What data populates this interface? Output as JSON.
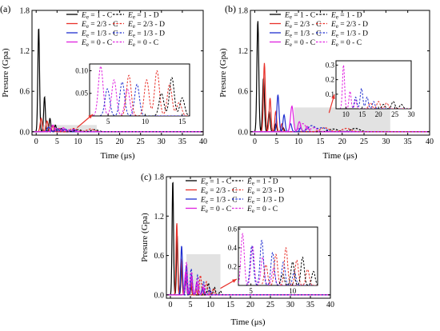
{
  "chart_data": [
    {
      "type": "line",
      "panel_label": "(a)",
      "xlabel": "Time (μs)",
      "ylabel": "Presure (Gpa)",
      "xlim": [
        -1,
        40
      ],
      "ylim": [
        -0.05,
        1.8
      ],
      "xticks": [
        "0",
        "5",
        "10",
        "15",
        "20",
        "25",
        "30",
        "35",
        "40"
      ],
      "yticks": [
        "0.0",
        "0.6",
        "1.2",
        "1.8"
      ],
      "legend": [
        {
          "sub": "e",
          "text": " = 1 - C",
          "color": "#000000",
          "dash": false
        },
        {
          "sub": "e",
          "text": " = 1 - D",
          "color": "#000000",
          "dash": true
        },
        {
          "sub": "e",
          "text": " = 2/3 - C",
          "color": "#e8312a",
          "dash": false
        },
        {
          "sub": "e",
          "text": " = 2/3 - D",
          "color": "#e8312a",
          "dash": true
        },
        {
          "sub": "e",
          "text": " = 1/3 - C",
          "color": "#1f2fd0",
          "dash": false
        },
        {
          "sub": "e",
          "text": " = 1/3 - D",
          "color": "#1f2fd0",
          "dash": true
        },
        {
          "sub": "e",
          "text": " = 0 - C",
          "color": "#e020e0",
          "dash": false
        },
        {
          "sub": "e",
          "text": " = 0 - C",
          "color": "#e020e0",
          "dash": true
        }
      ],
      "series": [
        {
          "color": "#000000",
          "dash": false,
          "peaks": [
            [
              0.6,
              1.55
            ],
            [
              2.0,
              0.52
            ],
            [
              3.3,
              0.2
            ],
            [
              4.6,
              0.1
            ],
            [
              6.0,
              0.05
            ]
          ],
          "w": 0.28
        },
        {
          "color": "#e8312a",
          "dash": false,
          "peaks": [
            [
              1.2,
              0.2
            ],
            [
              2.6,
              0.16
            ],
            [
              4.0,
              0.09
            ],
            [
              5.5,
              0.05
            ]
          ],
          "w": 0.35
        },
        {
          "color": "#1f2fd0",
          "dash": false,
          "peaks": [
            [
              3.0,
              0.07
            ],
            [
              5.0,
              0.05
            ],
            [
              7.0,
              0.04
            ]
          ],
          "w": 0.5
        },
        {
          "color": "#e020e0",
          "dash": false,
          "peaks": [
            [
              4.0,
              0.1
            ],
            [
              6.5,
              0.06
            ],
            [
              9.0,
              0.04
            ]
          ],
          "w": 0.5
        },
        {
          "color": "#000000",
          "dash": true,
          "peaks": [
            [
              10.0,
              0.03
            ],
            [
              14.0,
              0.03
            ]
          ],
          "w": 1.2
        },
        {
          "color": "#e8312a",
          "dash": true,
          "peaks": [
            [
              9.0,
              0.05
            ],
            [
              13.0,
              0.04
            ]
          ],
          "w": 1.2
        },
        {
          "color": "#1f2fd0",
          "dash": true,
          "peaks": [
            [
              6.0,
              0.04
            ],
            [
              9.0,
              0.03
            ]
          ],
          "w": 1.0
        },
        {
          "color": "#e020e0",
          "dash": true,
          "peaks": [
            [
              5.0,
              0.05
            ],
            [
              8.0,
              0.03
            ]
          ],
          "w": 1.0
        }
      ],
      "highlight_x": [
        1.8,
        14.5
      ],
      "highlight_y": 0.1,
      "inset": {
        "xlim": [
          2.5,
          16
        ],
        "ylim": [
          0,
          0.115
        ],
        "xticks": [
          "5",
          "10",
          "15"
        ],
        "yticks": [
          "0.05",
          "0.10"
        ],
        "series": [
          {
            "color": "#e020e0",
            "dash": true,
            "peaks": [
              [
                4.0,
                0.11
              ],
              [
                5.8,
                0.08
              ],
              [
                7.6,
                0.06
              ]
            ],
            "w": 0.45
          },
          {
            "color": "#1f2fd0",
            "dash": true,
            "peaks": [
              [
                4.9,
                0.06
              ],
              [
                6.9,
                0.075
              ],
              [
                8.9,
                0.07
              ]
            ],
            "w": 0.45
          },
          {
            "color": "#e8312a",
            "dash": true,
            "peaks": [
              [
                7.8,
                0.09
              ],
              [
                10.2,
                0.08
              ],
              [
                11.6,
                0.1
              ],
              [
                13.3,
                0.07
              ],
              [
                14.6,
                0.03
              ]
            ],
            "w": 0.45
          },
          {
            "color": "#000000",
            "dash": true,
            "peaks": [
              [
                12.2,
                0.05
              ],
              [
                13.6,
                0.085
              ],
              [
                15.0,
                0.04
              ]
            ],
            "w": 0.45
          }
        ]
      }
    },
    {
      "type": "line",
      "panel_label": "(b)",
      "xlabel": "Time (μs)",
      "ylabel": "Presure (Gpa)",
      "xlim": [
        -1,
        40
      ],
      "ylim": [
        -0.05,
        1.8
      ],
      "xticks": [
        "0",
        "5",
        "10",
        "15",
        "20",
        "25",
        "30",
        "35",
        "40"
      ],
      "yticks": [
        "0.0",
        "0.6",
        "1.2",
        "1.8"
      ],
      "legend": [
        {
          "sub": "e",
          "text": " = 1 - C",
          "color": "#000000",
          "dash": false
        },
        {
          "sub": "e",
          "text": " = 1 - D",
          "color": "#000000",
          "dash": true
        },
        {
          "sub": "e",
          "text": " = 2/3 - C",
          "color": "#e8312a",
          "dash": false
        },
        {
          "sub": "e",
          "text": " = 2/3 - D",
          "color": "#e8312a",
          "dash": true
        },
        {
          "sub": "e",
          "text": " = 1/3 - C",
          "color": "#1f2fd0",
          "dash": false
        },
        {
          "sub": "e",
          "text": " = 1/3 - D",
          "color": "#1f2fd0",
          "dash": true
        },
        {
          "sub": "e",
          "text": " = 0 - C",
          "color": "#e020e0",
          "dash": false
        },
        {
          "sub": "e",
          "text": " = 0 - C",
          "color": "#e020e0",
          "dash": true
        }
      ],
      "series": [
        {
          "color": "#000000",
          "dash": false,
          "peaks": [
            [
              0.7,
              1.65
            ],
            [
              2.0,
              0.8
            ],
            [
              3.3,
              0.3
            ],
            [
              4.8,
              0.12
            ],
            [
              6.5,
              0.06
            ]
          ],
          "w": 0.3
        },
        {
          "color": "#e8312a",
          "dash": false,
          "peaks": [
            [
              2.2,
              1.02
            ],
            [
              3.5,
              0.5
            ],
            [
              4.8,
              0.3
            ],
            [
              6.2,
              0.12
            ]
          ],
          "w": 0.3
        },
        {
          "color": "#1f2fd0",
          "dash": false,
          "peaks": [
            [
              5.3,
              0.55
            ],
            [
              6.7,
              0.25
            ],
            [
              8.2,
              0.12
            ],
            [
              10.5,
              0.06
            ]
          ],
          "w": 0.35
        },
        {
          "color": "#e020e0",
          "dash": false,
          "peaks": [
            [
              8.5,
              0.38
            ],
            [
              10.2,
              0.15
            ],
            [
              12.0,
              0.08
            ]
          ],
          "w": 0.45
        },
        {
          "color": "#000000",
          "dash": true,
          "peaks": [
            [
              18.0,
              0.04
            ],
            [
              23.0,
              0.05
            ]
          ],
          "w": 1.4
        },
        {
          "color": "#e8312a",
          "dash": true,
          "peaks": [
            [
              16.0,
              0.06
            ],
            [
              21.0,
              0.05
            ]
          ],
          "w": 1.4
        },
        {
          "color": "#1f2fd0",
          "dash": true,
          "peaks": [
            [
              13.0,
              0.09
            ],
            [
              15.5,
              0.06
            ]
          ],
          "w": 1.2
        },
        {
          "color": "#e020e0",
          "dash": true,
          "peaks": [
            [
              11.0,
              0.12
            ],
            [
              13.5,
              0.06
            ]
          ],
          "w": 1.0
        }
      ],
      "highlight_x": [
        9.0,
        31.0
      ],
      "highlight_y": 0.36,
      "inset": {
        "xlim": [
          7,
          30
        ],
        "ylim": [
          0,
          0.33
        ],
        "xticks": [
          "10",
          "15",
          "20",
          "25",
          "30"
        ],
        "yticks": [
          "0.1",
          "0.2",
          "0.3"
        ],
        "series": [
          {
            "color": "#e020e0",
            "dash": true,
            "peaks": [
              [
                9.3,
                0.3
              ],
              [
                11.3,
                0.12
              ],
              [
                13.0,
                0.06
              ]
            ],
            "w": 0.45
          },
          {
            "color": "#1f2fd0",
            "dash": true,
            "peaks": [
              [
                13.0,
                0.08
              ],
              [
                14.8,
                0.14
              ],
              [
                16.5,
                0.08
              ],
              [
                18.5,
                0.05
              ]
            ],
            "w": 0.55
          },
          {
            "color": "#e8312a",
            "dash": true,
            "peaks": [
              [
                17.5,
                0.04
              ],
              [
                20.0,
                0.05
              ],
              [
                22.5,
                0.04
              ]
            ],
            "w": 0.7
          },
          {
            "color": "#000000",
            "dash": true,
            "peaks": [
              [
                21.5,
                0.03
              ],
              [
                24.5,
                0.05
              ],
              [
                27.0,
                0.03
              ]
            ],
            "w": 0.7
          }
        ]
      }
    },
    {
      "type": "line",
      "panel_label": "(c)",
      "xlabel": "Time (μs)",
      "ylabel": "Presure (Gpa)",
      "xlim": [
        -1,
        40
      ],
      "ylim": [
        -0.05,
        1.8
      ],
      "xticks": [
        "0",
        "5",
        "10",
        "15",
        "20",
        "25",
        "30",
        "35",
        "40"
      ],
      "yticks": [
        "0.0",
        "0.6",
        "1.2",
        "1.8"
      ],
      "legend": [
        {
          "sub": "e",
          "text": " = 1 - C",
          "color": "#000000",
          "dash": false
        },
        {
          "sub": "e",
          "text": " = 1 - D",
          "color": "#000000",
          "dash": true
        },
        {
          "sub": "e",
          "text": " = 2/3 - C",
          "color": "#e8312a",
          "dash": false
        },
        {
          "sub": "e",
          "text": " = 2/3 - D",
          "color": "#e8312a",
          "dash": true
        },
        {
          "sub": "e",
          "text": " = 1/3 - C",
          "color": "#1f2fd0",
          "dash": false
        },
        {
          "sub": "e",
          "text": " = 1/3 - D",
          "color": "#1f2fd0",
          "dash": true
        },
        {
          "sub": "e",
          "text": " = 0 - C",
          "color": "#e020e0",
          "dash": false
        },
        {
          "sub": "e",
          "text": " = 0 - C",
          "color": "#e020e0",
          "dash": true
        }
      ],
      "series": [
        {
          "color": "#000000",
          "dash": false,
          "peaks": [
            [
              0.6,
              1.75
            ],
            [
              1.7,
              0.9
            ],
            [
              2.8,
              0.45
            ],
            [
              3.9,
              0.25
            ],
            [
              5.2,
              0.12
            ]
          ],
          "w": 0.25
        },
        {
          "color": "#e8312a",
          "dash": false,
          "peaks": [
            [
              1.6,
              1.1
            ],
            [
              2.7,
              0.55
            ],
            [
              3.9,
              0.35
            ],
            [
              5.1,
              0.2
            ],
            [
              6.4,
              0.1
            ]
          ],
          "w": 0.27
        },
        {
          "color": "#1f2fd0",
          "dash": false,
          "peaks": [
            [
              2.8,
              0.75
            ],
            [
              4.0,
              0.45
            ],
            [
              5.3,
              0.3
            ],
            [
              6.6,
              0.18
            ],
            [
              8.0,
              0.1
            ]
          ],
          "w": 0.3
        },
        {
          "color": "#e020e0",
          "dash": false,
          "peaks": [
            [
              3.8,
              0.35
            ],
            [
              5.2,
              0.28
            ],
            [
              6.6,
              0.2
            ],
            [
              8.2,
              0.12
            ],
            [
              10.0,
              0.06
            ]
          ],
          "w": 0.33
        },
        {
          "color": "#000000",
          "dash": true,
          "peaks": [
            [
              9.5,
              0.18
            ],
            [
              11.0,
              0.12
            ],
            [
              12.5,
              0.06
            ]
          ],
          "w": 0.35
        },
        {
          "color": "#e8312a",
          "dash": true,
          "peaks": [
            [
              7.5,
              0.3
            ],
            [
              9.0,
              0.2
            ],
            [
              10.8,
              0.1
            ]
          ],
          "w": 0.35
        },
        {
          "color": "#1f2fd0",
          "dash": true,
          "peaks": [
            [
              5.2,
              0.4
            ],
            [
              6.8,
              0.3
            ],
            [
              8.3,
              0.2
            ],
            [
              9.8,
              0.1
            ]
          ],
          "w": 0.35
        },
        {
          "color": "#e020e0",
          "dash": true,
          "peaks": [
            [
              4.0,
              0.5
            ],
            [
              5.3,
              0.35
            ],
            [
              6.8,
              0.25
            ],
            [
              8.3,
              0.15
            ]
          ],
          "w": 0.35
        }
      ],
      "highlight_x": [
        4.0,
        12.5
      ],
      "highlight_y": 0.62,
      "inset": {
        "xlim": [
          3.5,
          13
        ],
        "ylim": [
          0,
          0.62
        ],
        "xticks": [
          "5",
          "10"
        ],
        "yticks": [
          "0.2",
          "0.4",
          "0.6"
        ],
        "series": [
          {
            "color": "#e020e0",
            "dash": true,
            "peaks": [
              [
                4.0,
                0.55
              ],
              [
                5.2,
                0.42
              ],
              [
                6.4,
                0.3
              ],
              [
                7.7,
                0.18
              ]
            ],
            "w": 0.28
          },
          {
            "color": "#1f2fd0",
            "dash": true,
            "peaks": [
              [
                5.1,
                0.42
              ],
              [
                6.3,
                0.48
              ],
              [
                7.6,
                0.35
              ],
              [
                8.9,
                0.25
              ],
              [
                10.2,
                0.15
              ]
            ],
            "w": 0.28
          },
          {
            "color": "#e8312a",
            "dash": true,
            "peaks": [
              [
                6.8,
                0.22
              ],
              [
                8.0,
                0.33
              ],
              [
                9.2,
                0.4
              ],
              [
                10.5,
                0.27
              ],
              [
                11.8,
                0.17
              ]
            ],
            "w": 0.28
          },
          {
            "color": "#000000",
            "dash": true,
            "peaks": [
              [
                8.8,
                0.12
              ],
              [
                10.0,
                0.25
              ],
              [
                11.2,
                0.3
              ],
              [
                12.5,
                0.15
              ]
            ],
            "w": 0.28
          }
        ]
      }
    }
  ]
}
